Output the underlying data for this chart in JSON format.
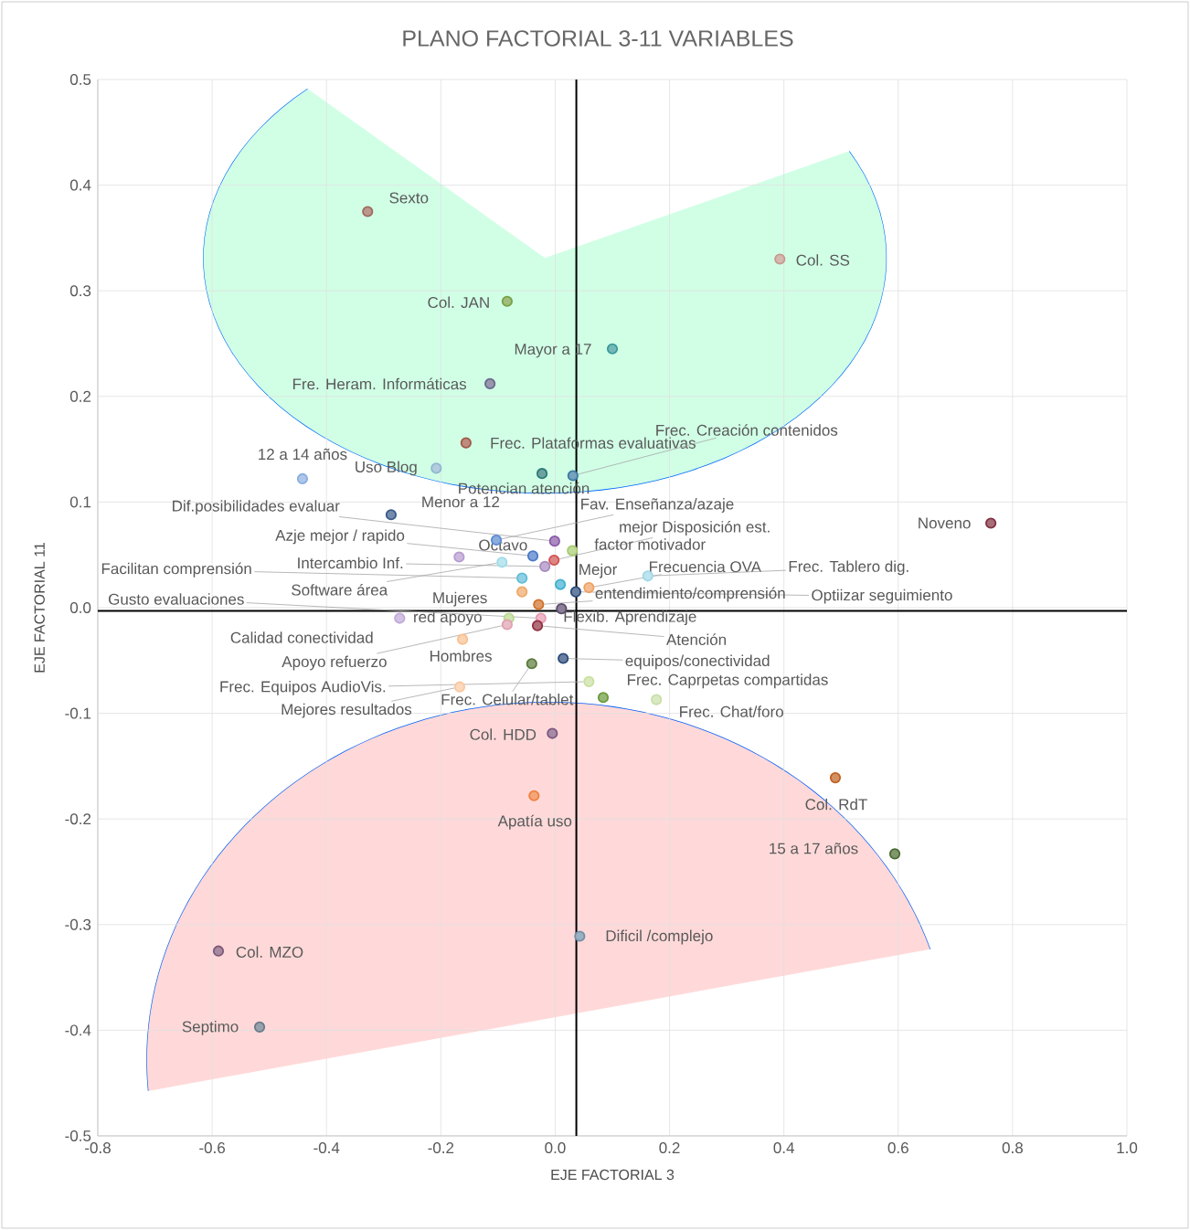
{
  "chart_data": {
    "type": "scatter",
    "title": "PLANO FACTORIAL  3-11 VARIABLES",
    "xlabel": "EJE FACTORIAL 3",
    "ylabel": "EJE FACTORIAL 11",
    "x": [
      -0.328,
      0.393,
      -0.084,
      0.1,
      -0.114,
      -0.156,
      -0.208,
      -0.023,
      0.031,
      -0.442,
      -0.287,
      -0.103,
      -0.001,
      -0.039,
      -0.002,
      0.03,
      -0.168,
      -0.093,
      -0.018,
      -0.058,
      0.009,
      0.036,
      0.059,
      0.162,
      -0.058,
      -0.029,
      0.011,
      -0.081,
      -0.025,
      -0.084,
      -0.031,
      -0.162,
      -0.041,
      0.014,
      0.059,
      -0.167,
      0.084,
      0.177,
      -0.272,
      -0.005,
      0.762,
      0.49,
      0.594,
      -0.037,
      0.043,
      -0.589,
      -0.517
    ],
    "values": [
      0.375,
      0.33,
      0.29,
      0.245,
      0.212,
      0.156,
      0.132,
      0.127,
      0.125,
      0.122,
      0.088,
      0.064,
      0.063,
      0.049,
      0.045,
      0.054,
      0.048,
      0.043,
      0.039,
      0.028,
      0.022,
      0.015,
      0.019,
      0.03,
      0.015,
      0.003,
      -0.001,
      -0.01,
      -0.01,
      -0.016,
      -0.017,
      -0.03,
      -0.053,
      -0.048,
      -0.07,
      -0.075,
      -0.085,
      -0.087,
      -0.01,
      -0.119,
      0.08,
      -0.161,
      -0.233,
      -0.178,
      -0.311,
      -0.325,
      -0.397
    ],
    "colors": [
      "#9e6b5c",
      "#c49a8e",
      "#77a045",
      "#3a9a9a",
      "#6a6a8a",
      "#a05a48",
      "#8fb8d0",
      "#2e7a78",
      "#3a7aa0",
      "#8aaee0",
      "#3a5a8a",
      "#5a8ad0",
      "#8a5aa8",
      "#4a7ac8",
      "#d05050",
      "#a8cc70",
      "#b89ad0",
      "#a0dce8",
      "#a68ac0",
      "#60bcd8",
      "#40b0d0",
      "#2a4a7a",
      "#f0a060",
      "#a0d8e8",
      "#f0a868",
      "#d0702a",
      "#5a4a6a",
      "#b8d890",
      "#e89ab0",
      "#e0a0b0",
      "#903040",
      "#f8c090",
      "#5a7a3a",
      "#2a4a7a",
      "#c8e0a0",
      "#f8c8a0",
      "#6a9a3a",
      "#c8e0a8",
      "#c0a8d8",
      "#805880",
      "#803040",
      "#c06020",
      "#4a6a30",
      "#f08040",
      "#7090a8",
      "#805878",
      "#6a7a8a"
    ],
    "annotations": [
      {
        "text": "Sexto",
        "x": -0.328,
        "y": 0.375
      },
      {
        "text": "Col. SS",
        "x": 0.393,
        "y": 0.33
      },
      {
        "text": "Col. JAN",
        "x": -0.084,
        "y": 0.29
      },
      {
        "text": "Mayor a 17",
        "x": 0.1,
        "y": 0.245
      },
      {
        "text": "Fre. Heram. Informáticas",
        "x": -0.114,
        "y": 0.212
      },
      {
        "text": "Frec. Plataformas evaluativas",
        "x": -0.156,
        "y": 0.156
      },
      {
        "text": "Uso Blog",
        "x": -0.208,
        "y": 0.132
      },
      {
        "text": "Potencian atención",
        "x": -0.023,
        "y": 0.127
      },
      {
        "text": "Frec. Creación contenidos",
        "x": 0.031,
        "y": 0.125
      },
      {
        "text": "12 a 14 años",
        "x": -0.442,
        "y": 0.122
      },
      {
        "text": "Menor a 12",
        "x": -0.287,
        "y": 0.088
      },
      {
        "text": "Fav. Enseñanza/azaje",
        "x": -0.103,
        "y": 0.064
      },
      {
        "text": "Dif.posibilidades evaluar",
        "x": -0.001,
        "y": 0.063
      },
      {
        "text": "Azje mejor / rapido",
        "x": -0.039,
        "y": 0.049
      },
      {
        "text": "mejor Disposición est.",
        "x": -0.002,
        "y": 0.045
      },
      {
        "text": "factor motivador",
        "x": 0.03,
        "y": 0.054
      },
      {
        "text": "Octavo",
        "x": -0.168,
        "y": 0.048
      },
      {
        "text": "Software área",
        "x": -0.093,
        "y": 0.043
      },
      {
        "text": "Intercambio Inf.",
        "x": -0.018,
        "y": 0.039
      },
      {
        "text": "Facilitan comprensión",
        "x": -0.058,
        "y": 0.028
      },
      {
        "text": "Mejor",
        "x": 0.009,
        "y": 0.022
      },
      {
        "text": "Optiizar seguimiento",
        "x": 0.036,
        "y": 0.015
      },
      {
        "text": "Frecuencia OVA",
        "x": 0.059,
        "y": 0.019
      },
      {
        "text": "Frec. Tablero dig.",
        "x": 0.162,
        "y": 0.03
      },
      {
        "text": "Mujeres",
        "x": -0.058,
        "y": 0.015
      },
      {
        "text": "entendimiento/comprensión",
        "x": -0.029,
        "y": 0.003
      },
      {
        "text": "Flexib. Aprendizaje",
        "x": 0.011,
        "y": -0.001
      },
      {
        "text": "red apoyo",
        "x": -0.081,
        "y": -0.01
      },
      {
        "text": "Gusto evaluaciones",
        "x": -0.025,
        "y": -0.01
      },
      {
        "text": "Apoyo refuerzo",
        "x": -0.084,
        "y": -0.016
      },
      {
        "text": "Atención",
        "x": -0.031,
        "y": -0.017
      },
      {
        "text": "Hombres",
        "x": -0.162,
        "y": -0.03
      },
      {
        "text": "Frec. Celular/tablet",
        "x": -0.041,
        "y": -0.053
      },
      {
        "text": "equipos/conectividad",
        "x": 0.014,
        "y": -0.048
      },
      {
        "text": "Frec. Equipos AudioVis.",
        "x": 0.059,
        "y": -0.07
      },
      {
        "text": "Mejores resultados",
        "x": -0.167,
        "y": -0.075
      },
      {
        "text": "Frec. Caprpetas compartidas",
        "x": 0.084,
        "y": -0.085
      },
      {
        "text": "Frec. Chat/foro",
        "x": 0.177,
        "y": -0.087
      },
      {
        "text": "Calidad conectividad",
        "x": -0.272,
        "y": -0.01
      },
      {
        "text": "Col. HDD",
        "x": -0.005,
        "y": -0.119
      },
      {
        "text": "Noveno",
        "x": 0.762,
        "y": 0.08
      },
      {
        "text": "Col. RdT",
        "x": 0.49,
        "y": -0.161
      },
      {
        "text": "15 a 17 años",
        "x": 0.594,
        "y": -0.233
      },
      {
        "text": "Apatía uso",
        "x": -0.037,
        "y": -0.178
      },
      {
        "text": "Dificil /complejo",
        "x": 0.043,
        "y": -0.311
      },
      {
        "text": "Col. MZO",
        "x": -0.589,
        "y": -0.325
      },
      {
        "text": "Septimo",
        "x": -0.517,
        "y": -0.397
      }
    ],
    "xlim": [
      -0.8,
      1.0
    ],
    "xticks": [
      {
        "value": -0.8,
        "label": "-0.8"
      },
      {
        "value": -0.6,
        "label": "-0.6"
      },
      {
        "value": -0.4,
        "label": "-0.4"
      },
      {
        "value": -0.2,
        "label": "-0.2"
      },
      {
        "value": 0.0,
        "label": "0.0"
      },
      {
        "value": 0.2,
        "label": "0.2"
      },
      {
        "value": 0.4,
        "label": "0.4"
      },
      {
        "value": 0.6,
        "label": "0.6"
      },
      {
        "value": 0.8,
        "label": "0.8"
      },
      {
        "value": 1.0,
        "label": "1.0"
      }
    ],
    "ylim": [
      -0.5,
      0.5
    ],
    "yticks": [
      {
        "value": -0.5,
        "label": "-0.5"
      },
      {
        "value": -0.4,
        "label": "-0.4"
      },
      {
        "value": -0.3,
        "label": "-0.3"
      },
      {
        "value": -0.2,
        "label": "-0.2"
      },
      {
        "value": -0.1,
        "label": "-0.1"
      },
      {
        "value": 0.0,
        "label": "0.0"
      },
      {
        "value": 0.1,
        "label": "0.1"
      },
      {
        "value": 0.2,
        "label": "0.2"
      },
      {
        "value": 0.3,
        "label": "0.3"
      },
      {
        "value": 0.4,
        "label": "0.4"
      },
      {
        "value": 0.5,
        "label": "0.5"
      }
    ],
    "ref_lines": [
      {
        "axis": "x",
        "value": 0.037,
        "color": "#000000"
      },
      {
        "axis": "y",
        "value": -0.003,
        "color": "#000000"
      }
    ],
    "grid": true,
    "marker": "circle"
  }
}
